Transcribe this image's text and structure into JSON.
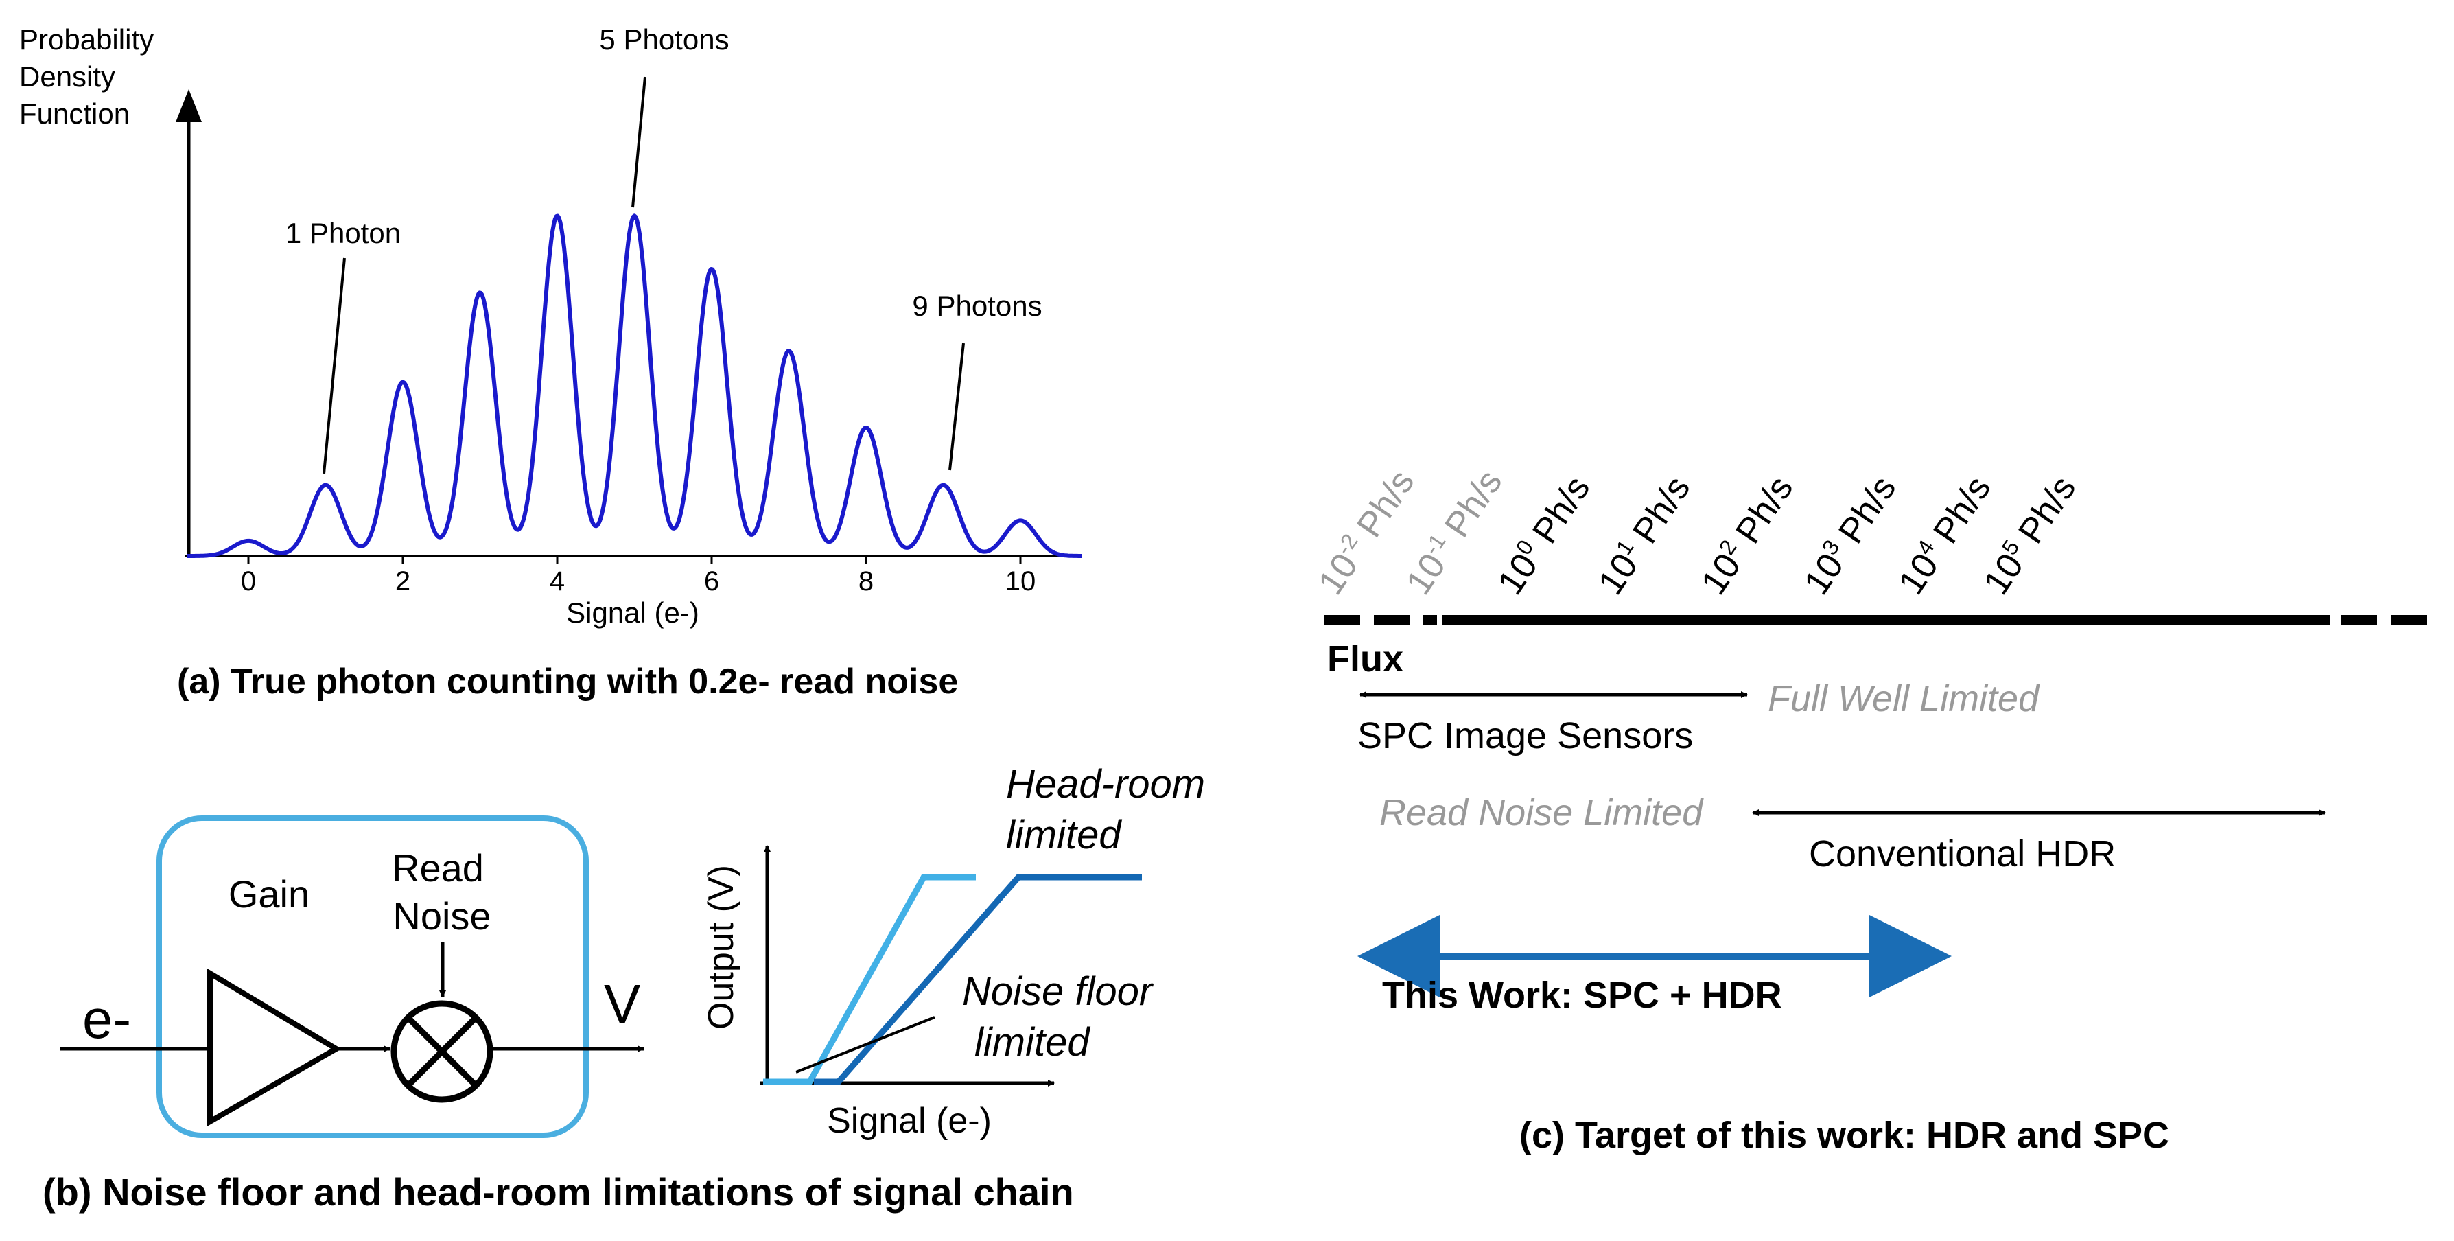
{
  "panel_a": {
    "ylabel": [
      "Probability",
      "Density",
      "Function"
    ],
    "xlabel": "Signal (e-)",
    "x_ticks": [
      "0",
      "2",
      "4",
      "6",
      "8",
      "10"
    ],
    "annotations": {
      "one": "1 Photon",
      "five": "5 Photons",
      "nine": "9 Photons"
    },
    "caption": "(a) True photon counting with 0.2e- read noise",
    "colors": {
      "curve": "#1a1acc"
    }
  },
  "chart_data": {
    "type": "line",
    "title": "",
    "xlabel": "Signal (e-)",
    "ylabel": "Probability Density Function",
    "xlim": [
      -0.8,
      10.8
    ],
    "read_noise_sigma": 0.2,
    "peaks": {
      "x": [
        0,
        1,
        2,
        3,
        4,
        5,
        6,
        7,
        8,
        9,
        10
      ],
      "y": [
        0.018,
        0.084,
        0.206,
        0.312,
        0.403,
        0.403,
        0.34,
        0.243,
        0.152,
        0.084,
        0.042
      ]
    }
  },
  "panel_b": {
    "gain": "Gain",
    "read_noise": [
      "Read",
      "Noise"
    ],
    "input": "e-",
    "output": "V",
    "graph_ylabel": "Output (V)",
    "graph_xlabel": "Signal (e-)",
    "headroom": [
      "Head-room",
      "limited"
    ],
    "noise_floor": [
      "Noise floor",
      "limited"
    ],
    "caption": "(b) Noise floor and head-room limitations of signal chain",
    "colors": {
      "box": "#4aaee0",
      "light": "#41b0e6",
      "dark": "#1468b4"
    }
  },
  "panel_c": {
    "flux_label": "Flux",
    "ticks": [
      {
        "base": "10",
        "exp": "-2",
        "unit": " Ph/s",
        "muted": true
      },
      {
        "base": "10",
        "exp": "-1",
        "unit": " Ph/s",
        "muted": true
      },
      {
        "base": "10",
        "exp": "0",
        "unit": " Ph/s",
        "muted": false
      },
      {
        "base": "10",
        "exp": "1",
        "unit": " Ph/s",
        "muted": false
      },
      {
        "base": "10",
        "exp": "2",
        "unit": " Ph/s",
        "muted": false
      },
      {
        "base": "10",
        "exp": "3",
        "unit": " Ph/s",
        "muted": false
      },
      {
        "base": "10",
        "exp": "4",
        "unit": " Ph/s",
        "muted": false
      },
      {
        "base": "10",
        "exp": "5",
        "unit": " Ph/s",
        "muted": false
      }
    ],
    "spc_label": "SPC Image Sensors",
    "full_well": "Full Well Limited",
    "read_noise_limited": "Read Noise Limited",
    "conventional_hdr": "Conventional HDR",
    "this_work": "This Work: SPC + HDR",
    "caption": "(c) Target of this work: HDR and SPC",
    "colors": {
      "muted": "#999999",
      "text": "#000000",
      "accent": "#1a6db5"
    }
  }
}
